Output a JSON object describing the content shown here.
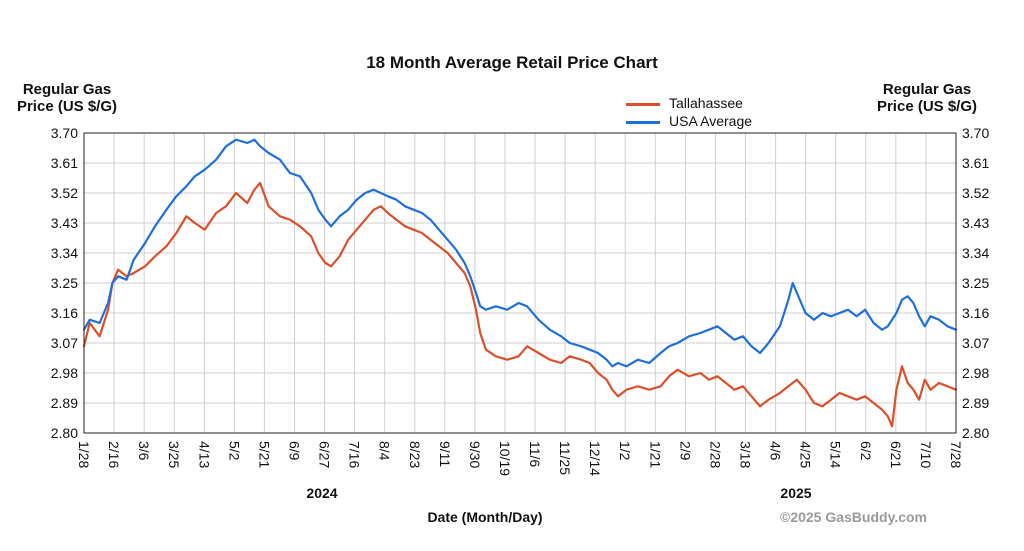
{
  "chart_data": {
    "type": "line",
    "title": "18 Month Average Retail Price Chart",
    "ylabel": "Regular Gas\nPrice (US $/G)",
    "xlabel": "Date (Month/Day)",
    "ylim": [
      2.8,
      3.7
    ],
    "yticks": [
      "3.70",
      "3.61",
      "3.52",
      "3.43",
      "3.34",
      "3.25",
      "3.16",
      "3.07",
      "2.98",
      "2.89",
      "2.80"
    ],
    "xticks": [
      "1/28",
      "2/16",
      "3/6",
      "3/25",
      "4/13",
      "5/2",
      "5/21",
      "6/9",
      "6/27",
      "7/16",
      "8/4",
      "8/23",
      "9/11",
      "9/30",
      "10/19",
      "11/6",
      "11/25",
      "12/14",
      "1/2",
      "1/21",
      "2/9",
      "2/28",
      "3/18",
      "4/6",
      "4/25",
      "5/14",
      "6/2",
      "6/21",
      "7/10",
      "7/28"
    ],
    "year_labels": [
      "2024",
      "2025"
    ],
    "grid": true,
    "legend_position": "top-right",
    "credit": "©2025 GasBuddy.com",
    "series": [
      {
        "name": "Tallahassee",
        "color": "#d9502b",
        "points": [
          [
            0,
            3.06
          ],
          [
            4,
            3.13
          ],
          [
            11,
            3.09
          ],
          [
            17,
            3.17
          ],
          [
            20,
            3.25
          ],
          [
            24,
            3.29
          ],
          [
            30,
            3.27
          ],
          [
            35,
            3.28
          ],
          [
            43,
            3.3
          ],
          [
            50,
            3.33
          ],
          [
            58,
            3.36
          ],
          [
            65,
            3.4
          ],
          [
            72,
            3.45
          ],
          [
            78,
            3.43
          ],
          [
            85,
            3.41
          ],
          [
            93,
            3.46
          ],
          [
            100,
            3.48
          ],
          [
            107,
            3.52
          ],
          [
            115,
            3.49
          ],
          [
            120,
            3.53
          ],
          [
            124,
            3.55
          ],
          [
            130,
            3.48
          ],
          [
            138,
            3.45
          ],
          [
            145,
            3.44
          ],
          [
            152,
            3.42
          ],
          [
            160,
            3.39
          ],
          [
            165,
            3.34
          ],
          [
            170,
            3.31
          ],
          [
            174,
            3.3
          ],
          [
            180,
            3.33
          ],
          [
            186,
            3.38
          ],
          [
            192,
            3.41
          ],
          [
            198,
            3.44
          ],
          [
            204,
            3.47
          ],
          [
            209,
            3.48
          ],
          [
            214,
            3.46
          ],
          [
            220,
            3.44
          ],
          [
            226,
            3.42
          ],
          [
            232,
            3.41
          ],
          [
            238,
            3.4
          ],
          [
            244,
            3.38
          ],
          [
            250,
            3.36
          ],
          [
            256,
            3.34
          ],
          [
            262,
            3.31
          ],
          [
            268,
            3.28
          ],
          [
            272,
            3.24
          ],
          [
            276,
            3.17
          ],
          [
            279,
            3.1
          ],
          [
            283,
            3.05
          ],
          [
            290,
            3.03
          ],
          [
            298,
            3.02
          ],
          [
            306,
            3.03
          ],
          [
            312,
            3.06
          ],
          [
            320,
            3.04
          ],
          [
            328,
            3.02
          ],
          [
            336,
            3.01
          ],
          [
            342,
            3.03
          ],
          [
            350,
            3.02
          ],
          [
            356,
            3.01
          ],
          [
            362,
            2.98
          ],
          [
            368,
            2.96
          ],
          [
            372,
            2.93
          ],
          [
            376,
            2.91
          ],
          [
            382,
            2.93
          ],
          [
            390,
            2.94
          ],
          [
            398,
            2.93
          ],
          [
            406,
            2.94
          ],
          [
            412,
            2.97
          ],
          [
            418,
            2.99
          ],
          [
            426,
            2.97
          ],
          [
            434,
            2.98
          ],
          [
            440,
            2.96
          ],
          [
            446,
            2.97
          ],
          [
            452,
            2.95
          ],
          [
            458,
            2.93
          ],
          [
            464,
            2.94
          ],
          [
            470,
            2.91
          ],
          [
            476,
            2.88
          ],
          [
            482,
            2.9
          ],
          [
            490,
            2.92
          ],
          [
            496,
            2.94
          ],
          [
            502,
            2.96
          ],
          [
            508,
            2.93
          ],
          [
            514,
            2.89
          ],
          [
            520,
            2.88
          ],
          [
            526,
            2.9
          ],
          [
            532,
            2.92
          ],
          [
            538,
            2.91
          ],
          [
            544,
            2.9
          ],
          [
            550,
            2.91
          ],
          [
            556,
            2.89
          ],
          [
            562,
            2.87
          ],
          [
            566,
            2.85
          ],
          [
            569,
            2.82
          ],
          [
            572,
            2.93
          ],
          [
            576,
            3.0
          ],
          [
            580,
            2.95
          ],
          [
            584,
            2.93
          ],
          [
            588,
            2.9
          ],
          [
            592,
            2.96
          ],
          [
            596,
            2.93
          ],
          [
            602,
            2.95
          ],
          [
            608,
            2.94
          ],
          [
            614,
            2.93
          ]
        ]
      },
      {
        "name": "USA Average",
        "color": "#1f6fd8",
        "points": [
          [
            0,
            3.11
          ],
          [
            4,
            3.14
          ],
          [
            11,
            3.13
          ],
          [
            17,
            3.19
          ],
          [
            20,
            3.25
          ],
          [
            24,
            3.27
          ],
          [
            30,
            3.26
          ],
          [
            35,
            3.32
          ],
          [
            43,
            3.37
          ],
          [
            50,
            3.42
          ],
          [
            58,
            3.47
          ],
          [
            65,
            3.51
          ],
          [
            72,
            3.54
          ],
          [
            78,
            3.57
          ],
          [
            85,
            3.59
          ],
          [
            93,
            3.62
          ],
          [
            100,
            3.66
          ],
          [
            107,
            3.68
          ],
          [
            115,
            3.67
          ],
          [
            120,
            3.68
          ],
          [
            124,
            3.66
          ],
          [
            130,
            3.64
          ],
          [
            138,
            3.62
          ],
          [
            145,
            3.58
          ],
          [
            152,
            3.57
          ],
          [
            160,
            3.52
          ],
          [
            165,
            3.47
          ],
          [
            170,
            3.44
          ],
          [
            174,
            3.42
          ],
          [
            180,
            3.45
          ],
          [
            186,
            3.47
          ],
          [
            192,
            3.5
          ],
          [
            198,
            3.52
          ],
          [
            204,
            3.53
          ],
          [
            209,
            3.52
          ],
          [
            214,
            3.51
          ],
          [
            220,
            3.5
          ],
          [
            226,
            3.48
          ],
          [
            232,
            3.47
          ],
          [
            238,
            3.46
          ],
          [
            244,
            3.44
          ],
          [
            250,
            3.41
          ],
          [
            256,
            3.38
          ],
          [
            262,
            3.35
          ],
          [
            268,
            3.31
          ],
          [
            272,
            3.27
          ],
          [
            276,
            3.22
          ],
          [
            279,
            3.18
          ],
          [
            283,
            3.17
          ],
          [
            290,
            3.18
          ],
          [
            298,
            3.17
          ],
          [
            306,
            3.19
          ],
          [
            312,
            3.18
          ],
          [
            320,
            3.14
          ],
          [
            328,
            3.11
          ],
          [
            336,
            3.09
          ],
          [
            342,
            3.07
          ],
          [
            350,
            3.06
          ],
          [
            356,
            3.05
          ],
          [
            362,
            3.04
          ],
          [
            368,
            3.02
          ],
          [
            372,
            3.0
          ],
          [
            376,
            3.01
          ],
          [
            382,
            3.0
          ],
          [
            390,
            3.02
          ],
          [
            398,
            3.01
          ],
          [
            406,
            3.04
          ],
          [
            412,
            3.06
          ],
          [
            418,
            3.07
          ],
          [
            426,
            3.09
          ],
          [
            434,
            3.1
          ],
          [
            440,
            3.11
          ],
          [
            446,
            3.12
          ],
          [
            452,
            3.1
          ],
          [
            458,
            3.08
          ],
          [
            464,
            3.09
          ],
          [
            470,
            3.06
          ],
          [
            476,
            3.04
          ],
          [
            482,
            3.07
          ],
          [
            490,
            3.12
          ],
          [
            496,
            3.2
          ],
          [
            499,
            3.25
          ],
          [
            502,
            3.22
          ],
          [
            508,
            3.16
          ],
          [
            514,
            3.14
          ],
          [
            520,
            3.16
          ],
          [
            526,
            3.15
          ],
          [
            532,
            3.16
          ],
          [
            538,
            3.17
          ],
          [
            544,
            3.15
          ],
          [
            550,
            3.17
          ],
          [
            556,
            3.13
          ],
          [
            562,
            3.11
          ],
          [
            566,
            3.12
          ],
          [
            569,
            3.14
          ],
          [
            572,
            3.16
          ],
          [
            576,
            3.2
          ],
          [
            580,
            3.21
          ],
          [
            584,
            3.19
          ],
          [
            588,
            3.15
          ],
          [
            592,
            3.12
          ],
          [
            596,
            3.15
          ],
          [
            602,
            3.14
          ],
          [
            608,
            3.12
          ],
          [
            614,
            3.11
          ]
        ]
      }
    ]
  }
}
